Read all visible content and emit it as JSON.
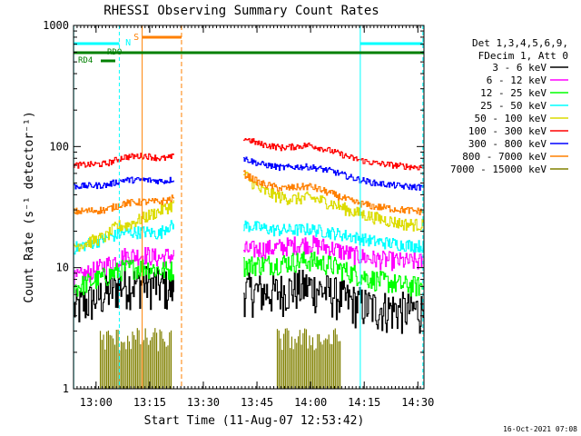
{
  "chart_data": {
    "type": "line",
    "title": "RHESSI Observing Summary Count Rates",
    "xlabel": "Start Time (11-Aug-07 12:53:42)",
    "ylabel": "Count Rate (s⁻¹ detector⁻¹)",
    "yscale": "log",
    "ylim": [
      1,
      1000
    ],
    "xlim_minutes": [
      0,
      98
    ],
    "x_tick_labels": [
      "13:00",
      "13:15",
      "13:30",
      "13:45",
      "14:00",
      "14:15",
      "14:30"
    ],
    "x_tick_minutes": [
      6.3,
      21.3,
      36.3,
      51.3,
      66.3,
      81.3,
      96.3
    ],
    "y_tick_labels": [
      "1",
      "10",
      "100",
      "1000"
    ],
    "y_tick_values": [
      1,
      10,
      100,
      1000
    ],
    "legend_header": [
      "Det 1,3,4,5,6,9,",
      "FDecim 1, Att 0"
    ],
    "data_gaps_minutes": [
      [
        28,
        47.5
      ]
    ],
    "series": [
      {
        "name": "3 - 6 keV",
        "color": "#000000",
        "points": [
          [
            0,
            4.6
          ],
          [
            9,
            6.2
          ],
          [
            14,
            7.4
          ],
          [
            20,
            7.5
          ],
          [
            24,
            7.2
          ],
          [
            26,
            6.8
          ],
          [
            47.5,
            6.5
          ],
          [
            56,
            6.3
          ],
          [
            62,
            6.8
          ],
          [
            66,
            7.0
          ],
          [
            72,
            6.2
          ],
          [
            78,
            5.2
          ],
          [
            84,
            4.7
          ],
          [
            92,
            4.5
          ],
          [
            98,
            4.5
          ]
        ]
      },
      {
        "name": "6 - 12 keV",
        "color": "#ff00ff",
        "points": [
          [
            0,
            8.0
          ],
          [
            9,
            10.5
          ],
          [
            14,
            12.5
          ],
          [
            20,
            12.8
          ],
          [
            24,
            12.0
          ],
          [
            26,
            12.5
          ],
          [
            47.5,
            14.0
          ],
          [
            56,
            14.5
          ],
          [
            62,
            15.5
          ],
          [
            66,
            15.8
          ],
          [
            72,
            14.5
          ],
          [
            78,
            12.8
          ],
          [
            84,
            11.8
          ],
          [
            92,
            11.3
          ],
          [
            98,
            11.2
          ]
        ]
      },
      {
        "name": "12 - 25 keV",
        "color": "#00ff00",
        "points": [
          [
            0,
            6.8
          ],
          [
            9,
            8.5
          ],
          [
            14,
            9.8
          ],
          [
            20,
            10.2
          ],
          [
            24,
            9.6
          ],
          [
            26,
            9.5
          ],
          [
            47.5,
            10.5
          ],
          [
            56,
            10.8
          ],
          [
            62,
            11.3
          ],
          [
            66,
            11.5
          ],
          [
            72,
            10.5
          ],
          [
            78,
            9.0
          ],
          [
            84,
            8.0
          ],
          [
            92,
            7.2
          ],
          [
            98,
            7.0
          ]
        ]
      },
      {
        "name": "25 - 50 keV",
        "color": "#00ffff",
        "points": [
          [
            0,
            14.5
          ],
          [
            9,
            17.5
          ],
          [
            14,
            19.5
          ],
          [
            20,
            19.8
          ],
          [
            24,
            19.0
          ],
          [
            26,
            22.0
          ],
          [
            47.5,
            22.5
          ],
          [
            56,
            20.5
          ],
          [
            62,
            20.5
          ],
          [
            66,
            20.8
          ],
          [
            72,
            19.5
          ],
          [
            78,
            18.0
          ],
          [
            84,
            16.5
          ],
          [
            92,
            15.5
          ],
          [
            98,
            15.0
          ]
        ]
      },
      {
        "name": "50 - 100 keV",
        "color": "#dcdc00",
        "points": [
          [
            0,
            15.0
          ],
          [
            9,
            18.0
          ],
          [
            12,
            22.0
          ],
          [
            15,
            22.5
          ],
          [
            47.5,
            60.0
          ],
          [
            52,
            44.0
          ],
          [
            58,
            38.0
          ],
          [
            62,
            37.0
          ],
          [
            66,
            38.0
          ],
          [
            72,
            34.0
          ],
          [
            78,
            29.0
          ],
          [
            84,
            26.0
          ],
          [
            92,
            23.0
          ],
          [
            98,
            22.5
          ]
        ]
      },
      {
        "name": "100 - 300 keV",
        "color": "#ff0000",
        "points": [
          [
            0,
            70
          ],
          [
            9,
            72
          ],
          [
            14,
            82
          ],
          [
            20,
            84
          ],
          [
            24,
            80
          ],
          [
            26,
            80
          ],
          [
            47.5,
            118
          ],
          [
            52,
            105
          ],
          [
            58,
            98
          ],
          [
            62,
            100
          ],
          [
            66,
            103
          ],
          [
            72,
            92
          ],
          [
            78,
            80
          ],
          [
            84,
            73
          ],
          [
            92,
            69
          ],
          [
            98,
            67
          ]
        ]
      },
      {
        "name": "300 - 800 keV",
        "color": "#0000ff",
        "points": [
          [
            0,
            47
          ],
          [
            9,
            48
          ],
          [
            14,
            53
          ],
          [
            20,
            53
          ],
          [
            24,
            52
          ],
          [
            26,
            52
          ],
          [
            47.5,
            80
          ],
          [
            52,
            72
          ],
          [
            58,
            67
          ],
          [
            62,
            68
          ],
          [
            66,
            68
          ],
          [
            72,
            63
          ],
          [
            78,
            55
          ],
          [
            84,
            50
          ],
          [
            92,
            47
          ],
          [
            98,
            46
          ]
        ]
      },
      {
        "name": "800 - 7000 keV",
        "color": "#ff8000",
        "points": [
          [
            0,
            29
          ],
          [
            9,
            30
          ],
          [
            14,
            34
          ],
          [
            20,
            35
          ],
          [
            24,
            35
          ],
          [
            26,
            36
          ],
          [
            47.5,
            60
          ],
          [
            52,
            50
          ],
          [
            58,
            45
          ],
          [
            62,
            46
          ],
          [
            66,
            47
          ],
          [
            72,
            41
          ],
          [
            78,
            35
          ],
          [
            84,
            32
          ],
          [
            92,
            30
          ],
          [
            98,
            29
          ]
        ]
      },
      {
        "name": "7000 - 15000 keV",
        "color": "#808000",
        "points": []
      }
    ],
    "flags": [
      {
        "label": "N",
        "color": "#00ffff",
        "level": "top"
      },
      {
        "label": "S",
        "color": "#ff8000",
        "level": "top"
      },
      {
        "label": "RDO",
        "color": "#008000",
        "level": "upper"
      },
      {
        "label": "RD4",
        "color": "#008000",
        "level": "lower"
      }
    ],
    "timestamp": "16-Oct-2021 07:08"
  }
}
